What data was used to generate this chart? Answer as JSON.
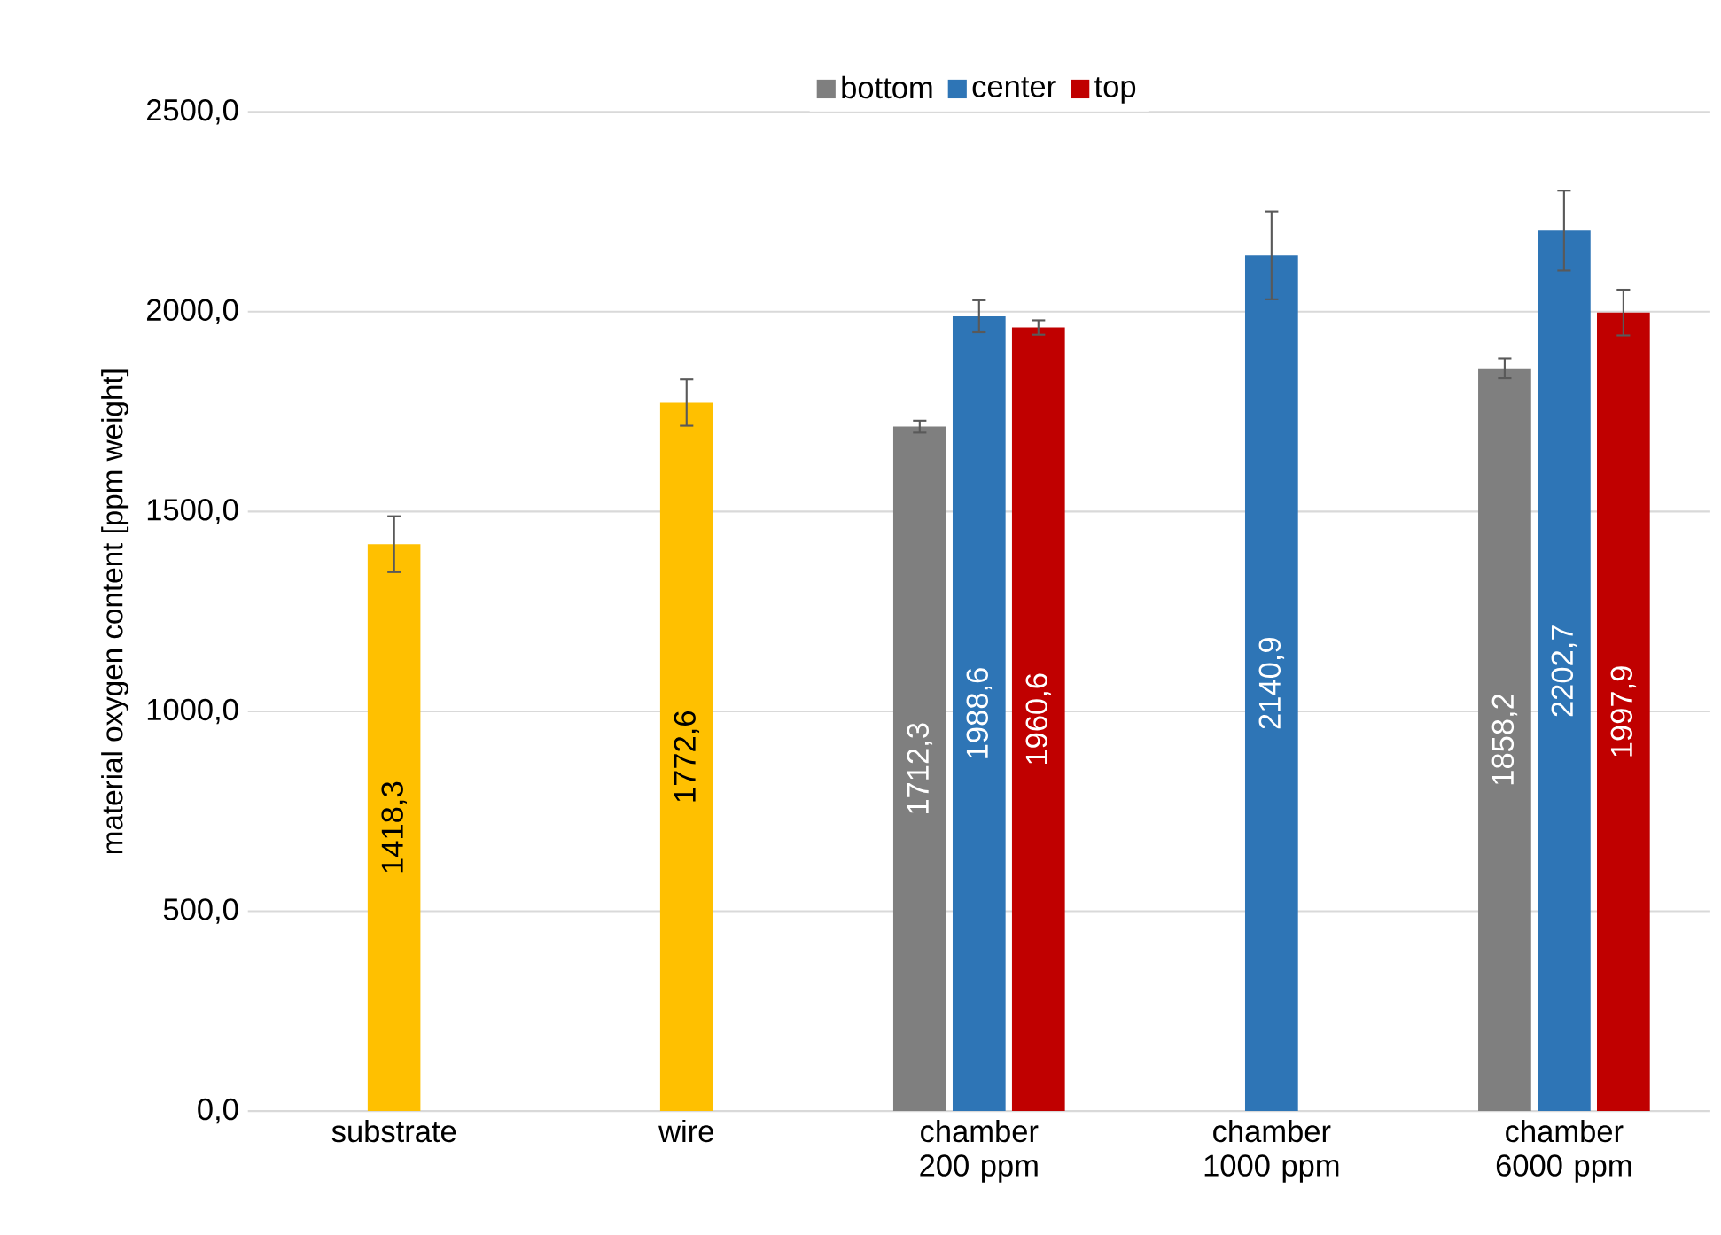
{
  "chart_data": {
    "type": "bar",
    "ylabel": "material oxygen content [ppm weight]",
    "categories": [
      "substrate",
      "wire",
      "chamber 200 ppm",
      "chamber 1000 ppm",
      "chamber 6000 ppm"
    ],
    "series": [
      {
        "name": "bottom",
        "color": "#7f7f7f",
        "values": [
          null,
          null,
          1712.3,
          null,
          1858.2
        ],
        "errors": [
          null,
          null,
          15,
          null,
          25
        ],
        "value_labels": [
          null,
          null,
          "1712,3",
          null,
          "1858,2"
        ]
      },
      {
        "name": "center",
        "color": "#2e75b6",
        "colors": [
          "#ffc000",
          "#ffc000",
          "#2e75b6",
          "#2e75b6",
          "#2e75b6"
        ],
        "values": [
          1418.3,
          1772.6,
          1988.6,
          2140.9,
          2202.7
        ],
        "errors": [
          70,
          58,
          40,
          110,
          100
        ],
        "value_labels": [
          "1418,3",
          "1772,6",
          "1988,6",
          "2140,9",
          "2202,7"
        ]
      },
      {
        "name": "top",
        "color": "#c00000",
        "values": [
          null,
          null,
          1960.6,
          null,
          1997.9
        ],
        "errors": [
          null,
          null,
          18,
          null,
          57
        ],
        "value_labels": [
          null,
          null,
          "1960,6",
          null,
          "1997,9"
        ]
      }
    ],
    "ylim": [
      0,
      2500
    ],
    "yticks": [
      {
        "value": 0,
        "label": "0,0"
      },
      {
        "value": 500,
        "label": "500,0"
      },
      {
        "value": 1000,
        "label": "1000,0"
      },
      {
        "value": 1500,
        "label": "1500,0"
      },
      {
        "value": 2000,
        "label": "2000,0"
      },
      {
        "value": 2500,
        "label": "2500,0"
      }
    ],
    "grid": "y",
    "legend": "top"
  }
}
